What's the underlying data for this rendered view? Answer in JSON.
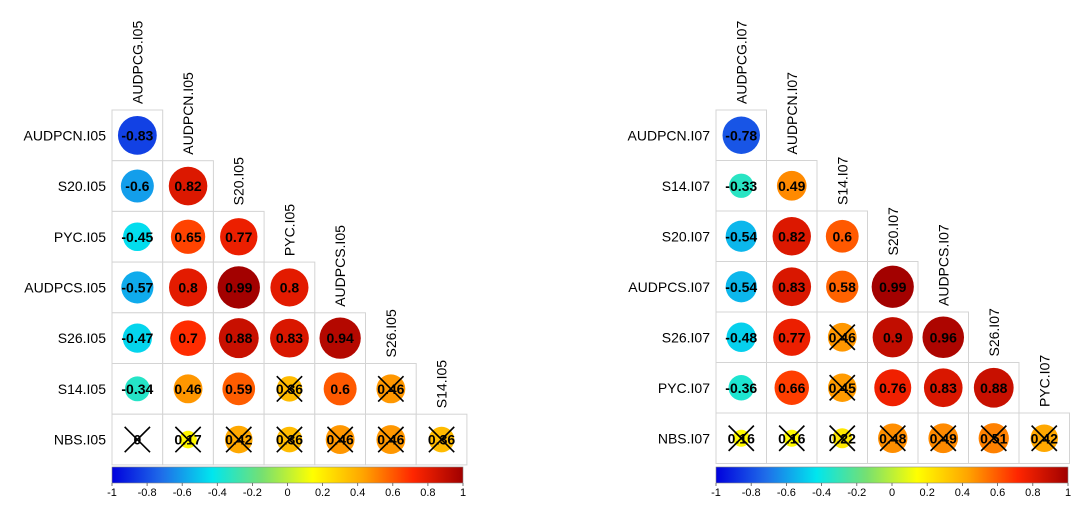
{
  "chart_data": [
    {
      "type": "heatmap",
      "subtype": "correlation-lower-triangle",
      "title": "",
      "row_labels": [
        "AUDPCN.I05",
        "S20.I05",
        "PYC.I05",
        "AUDPCS.I05",
        "S26.I05",
        "S14.I05",
        "NBS.I05"
      ],
      "col_labels": [
        "AUDPCG.I05",
        "AUDPCN.I05",
        "S20.I05",
        "PYC.I05",
        "AUDPCS.I05",
        "S26.I05",
        "S14.I05"
      ],
      "values": [
        [
          -0.83
        ],
        [
          -0.6,
          0.82
        ],
        [
          -0.45,
          0.65,
          0.77
        ],
        [
          -0.57,
          0.8,
          0.99,
          0.8
        ],
        [
          -0.47,
          0.7,
          0.88,
          0.83,
          0.94
        ],
        [
          -0.34,
          0.46,
          0.59,
          0.36,
          0.6,
          0.46
        ],
        [
          0,
          0.17,
          0.42,
          0.36,
          0.46,
          0.46,
          0.36
        ]
      ],
      "labels": [
        [
          "-0.83"
        ],
        [
          "-0.6",
          "0.82"
        ],
        [
          "-0.45",
          "0.65",
          "0.77"
        ],
        [
          "-0.57",
          "0.8",
          "0.99",
          "0.8"
        ],
        [
          "-0.47",
          "0.7",
          "0.88",
          "0.83",
          "0.94"
        ],
        [
          "-0.34",
          "0.46",
          "0.59",
          "0.36",
          "0.6",
          "0.46"
        ],
        [
          "0",
          "0.17",
          "0.42",
          "0.36",
          "0.46",
          "0.46",
          "0.36"
        ]
      ],
      "crossed": [
        [
          false
        ],
        [
          false,
          false
        ],
        [
          false,
          false,
          false
        ],
        [
          false,
          false,
          false,
          false
        ],
        [
          false,
          false,
          false,
          false,
          false
        ],
        [
          false,
          false,
          false,
          true,
          false,
          true
        ],
        [
          true,
          true,
          true,
          true,
          true,
          true,
          true
        ]
      ],
      "color_scale": {
        "range": [
          -1,
          1
        ],
        "ticks": [
          "-1",
          "-0.8",
          "-0.6",
          "-0.4",
          "-0.2",
          "0",
          "0.2",
          "0.4",
          "0.6",
          "0.8",
          "1"
        ],
        "colors": [
          "#0000dd",
          "#1f6ee9",
          "#00e6ee",
          "#77e070",
          "#ffff00",
          "#ffa500",
          "#ff2600",
          "#a00000"
        ]
      }
    },
    {
      "type": "heatmap",
      "subtype": "correlation-lower-triangle",
      "title": "",
      "row_labels": [
        "AUDPCN.I07",
        "S14.I07",
        "S20.I07",
        "AUDPCS.I07",
        "S26.I07",
        "PYC.I07",
        "NBS.I07"
      ],
      "col_labels": [
        "AUDPCG.I07",
        "AUDPCN.I07",
        "S14.I07",
        "S20.I07",
        "AUDPCS.I07",
        "S26.I07",
        "PYC.I07"
      ],
      "values": [
        [
          -0.78
        ],
        [
          -0.33,
          0.49
        ],
        [
          -0.54,
          0.82,
          0.6
        ],
        [
          -0.54,
          0.83,
          0.58,
          0.99
        ],
        [
          -0.48,
          0.77,
          0.46,
          0.9,
          0.96
        ],
        [
          -0.36,
          0.66,
          0.45,
          0.76,
          0.83,
          0.88
        ],
        [
          0.16,
          0.16,
          0.22,
          0.48,
          0.49,
          0.51,
          0.42
        ]
      ],
      "labels": [
        [
          "-0.78"
        ],
        [
          "-0.33",
          "0.49"
        ],
        [
          "-0.54",
          "0.82",
          "0.6"
        ],
        [
          "-0.54",
          "0.83",
          "0.58",
          "0.99"
        ],
        [
          "-0.48",
          "0.77",
          "0.46",
          "0.9",
          "0.96"
        ],
        [
          "-0.36",
          "0.66",
          "0.45",
          "0.76",
          "0.83",
          "0.88"
        ],
        [
          "0.16",
          "0.16",
          "0.22",
          "0.48",
          "0.49",
          "0.51",
          "0.42"
        ]
      ],
      "crossed": [
        [
          false
        ],
        [
          false,
          false
        ],
        [
          false,
          false,
          false
        ],
        [
          false,
          false,
          false,
          false
        ],
        [
          false,
          false,
          true,
          false,
          false
        ],
        [
          false,
          false,
          true,
          false,
          false,
          false
        ],
        [
          true,
          true,
          true,
          true,
          true,
          true,
          true
        ]
      ],
      "color_scale": {
        "range": [
          -1,
          1
        ],
        "ticks": [
          "-1",
          "-0.8",
          "-0.6",
          "-0.4",
          "-0.2",
          "0",
          "0.2",
          "0.4",
          "0.6",
          "0.8",
          "1"
        ],
        "colors": [
          "#0000dd",
          "#1f6ee9",
          "#00e6ee",
          "#77e070",
          "#ffff00",
          "#ffa500",
          "#ff2600",
          "#a00000"
        ]
      }
    }
  ]
}
